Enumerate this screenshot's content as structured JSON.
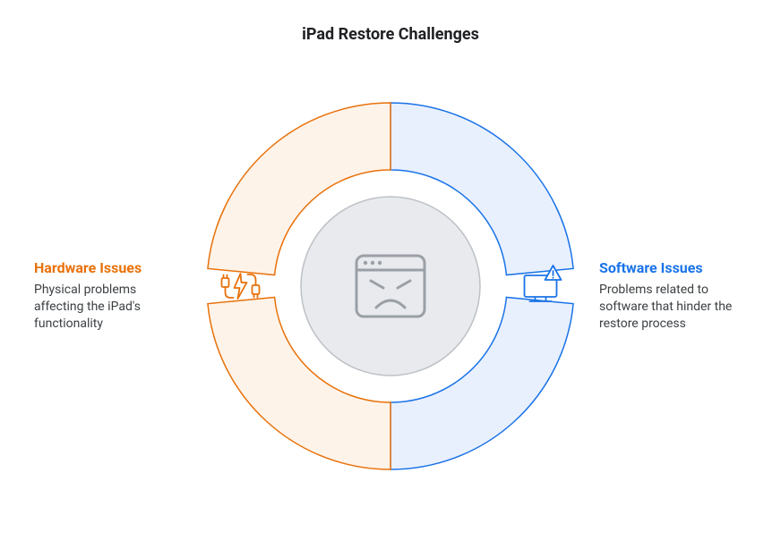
{
  "title": "iPad Restore Challenges",
  "colors": {
    "left_stroke": "#e8710a",
    "left_fill": "#fef3e9",
    "right_stroke": "#1a73e8",
    "right_fill": "#e8f0fe",
    "center_fill": "#e8eaed",
    "center_stroke": "#bdc1c6",
    "icon_gray": "#9aa0a6",
    "text": "#202124",
    "desc": "#3c4043",
    "bg": "#ffffff"
  },
  "ring": {
    "outer_r": 205,
    "inner_r": 130,
    "gap_deg": 11,
    "stroke_width": 1.5
  },
  "center": {
    "r": 100
  },
  "left": {
    "title": "Hardware Issues",
    "desc": "Physical problems affecting the iPad's functionality",
    "icon_name": "cable-power-icon"
  },
  "right": {
    "title": "Software Issues",
    "desc": "Problems related to software that hinder the restore process",
    "icon_name": "computer-warning-icon"
  },
  "center_icon_name": "angry-window-icon"
}
